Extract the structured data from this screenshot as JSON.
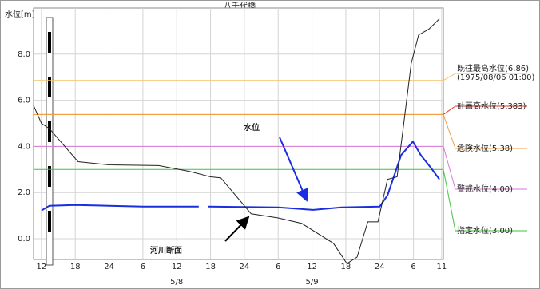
{
  "chart_data": {
    "type": "line",
    "title": "八千代橋",
    "y_label": "水位[m]",
    "xlim": [
      -1.4,
      71.3
    ],
    "ylim": [
      -0.9,
      10
    ],
    "xticks": [
      {
        "value": 0,
        "label": "12"
      },
      {
        "value": 6,
        "label": "18"
      },
      {
        "value": 12,
        "label": "24"
      },
      {
        "value": 18,
        "label": "6"
      },
      {
        "value": 24,
        "label": "12"
      },
      {
        "value": 30,
        "label": "18"
      },
      {
        "value": 36,
        "label": "24"
      },
      {
        "value": 42,
        "label": "6"
      },
      {
        "value": 48,
        "label": "12"
      },
      {
        "value": 54,
        "label": "18"
      },
      {
        "value": 60,
        "label": "24"
      },
      {
        "value": 66,
        "label": "6"
      },
      {
        "value": 71,
        "label": "11"
      }
    ],
    "date_labels": [
      {
        "value": 24,
        "label": "5/8"
      },
      {
        "value": 48,
        "label": "5/9"
      }
    ],
    "yticks": [
      {
        "value": 0,
        "label": "0.0"
      },
      {
        "value": 2,
        "label": "2.0"
      },
      {
        "value": 4,
        "label": "4.0"
      },
      {
        "value": 6,
        "label": "6.0"
      },
      {
        "value": 8,
        "label": "8.0"
      }
    ],
    "grid": true,
    "levels": [
      {
        "value": 6.86,
        "label": "既往最高水位(6.86)",
        "note": "(1975/08/06 01:00)",
        "color": "#f2c46a"
      },
      {
        "value": 5.383,
        "label": "計画高水位(5.383)",
        "color": "#e03a2a"
      },
      {
        "value": 5.38,
        "label": "危険水位(5.38)",
        "color": "#f0a040"
      },
      {
        "value": 4.0,
        "label": "警戒水位(4.00)",
        "color": "#d77ad7"
      },
      {
        "value": 3.0,
        "label": "指定水位(3.00)",
        "color": "#3cc43c"
      }
    ],
    "series": [
      {
        "name": "水位",
        "color": "#1a2ee0",
        "x": [
          0,
          1.4,
          6,
          12,
          18,
          27.9,
          28.7,
          29.6,
          42,
          48.2,
          53.2,
          60,
          61.4,
          63.8,
          65.9,
          67.3,
          69,
          70.6
        ],
        "values": [
          1.22,
          1.43,
          1.46,
          1.43,
          1.39,
          1.39,
          null,
          1.39,
          1.36,
          1.25,
          1.36,
          1.39,
          1.88,
          3.62,
          4.21,
          3.62,
          3.1,
          2.57
        ]
      },
      {
        "name": "河川断面",
        "color": "#222222",
        "x": [
          -1.4,
          0,
          1.4,
          6.5,
          12,
          20.8,
          26.2,
          30,
          31.8,
          37.2,
          42,
          46.2,
          51.8,
          54.2,
          56,
          57.9,
          59.7,
          61.4,
          63.1,
          64.5,
          65.6,
          66.9,
          68.7,
          70.6
        ],
        "values": [
          5.77,
          5.0,
          4.77,
          3.34,
          3.2,
          3.17,
          2.92,
          2.68,
          2.64,
          1.08,
          0.9,
          0.66,
          -0.2,
          -1.08,
          -0.8,
          0.73,
          0.73,
          2.57,
          2.68,
          5.43,
          7.6,
          8.83,
          9.08,
          9.53
        ]
      }
    ]
  }
}
